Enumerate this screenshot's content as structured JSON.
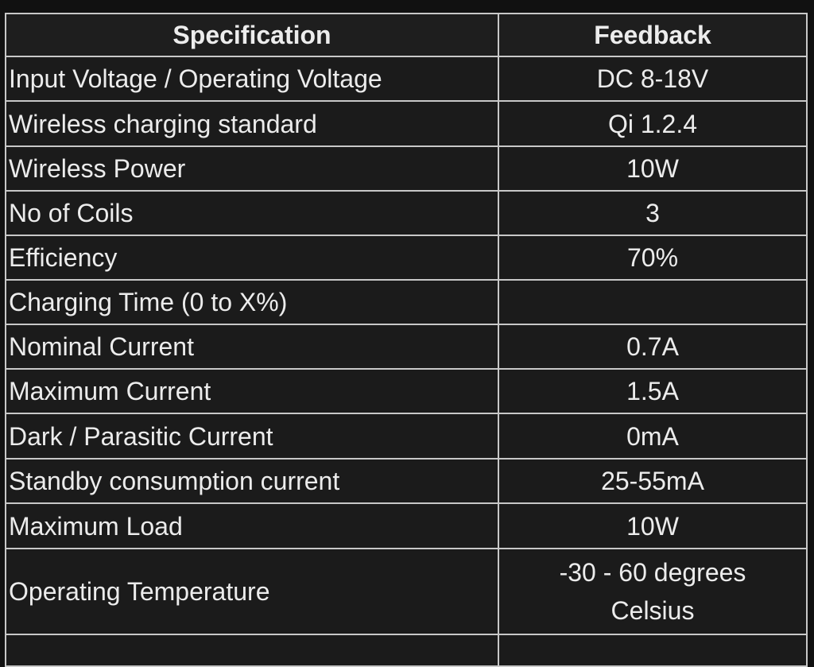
{
  "table": {
    "header": [
      "Specification",
      "Feedback"
    ],
    "rows": [
      [
        "Input Voltage / Operating Voltage",
        "DC 8-18V"
      ],
      [
        "Wireless charging standard",
        "Qi 1.2.4"
      ],
      [
        "Wireless Power",
        "10W"
      ],
      [
        "No of Coils",
        "3"
      ],
      [
        "Efficiency",
        "70%"
      ],
      [
        "Charging Time (0 to X%)",
        null
      ],
      [
        "Nominal Current",
        "0.7A"
      ],
      [
        "Maximum Current",
        "1.5A"
      ],
      [
        "Dark / Parasitic Current",
        "0mA"
      ],
      [
        "Standby consumption current",
        "25-55mA"
      ],
      [
        "Maximum Load",
        "10W"
      ],
      [
        "Operating Temperature",
        "-30 - 60 degrees Celsius"
      ]
    ]
  }
}
